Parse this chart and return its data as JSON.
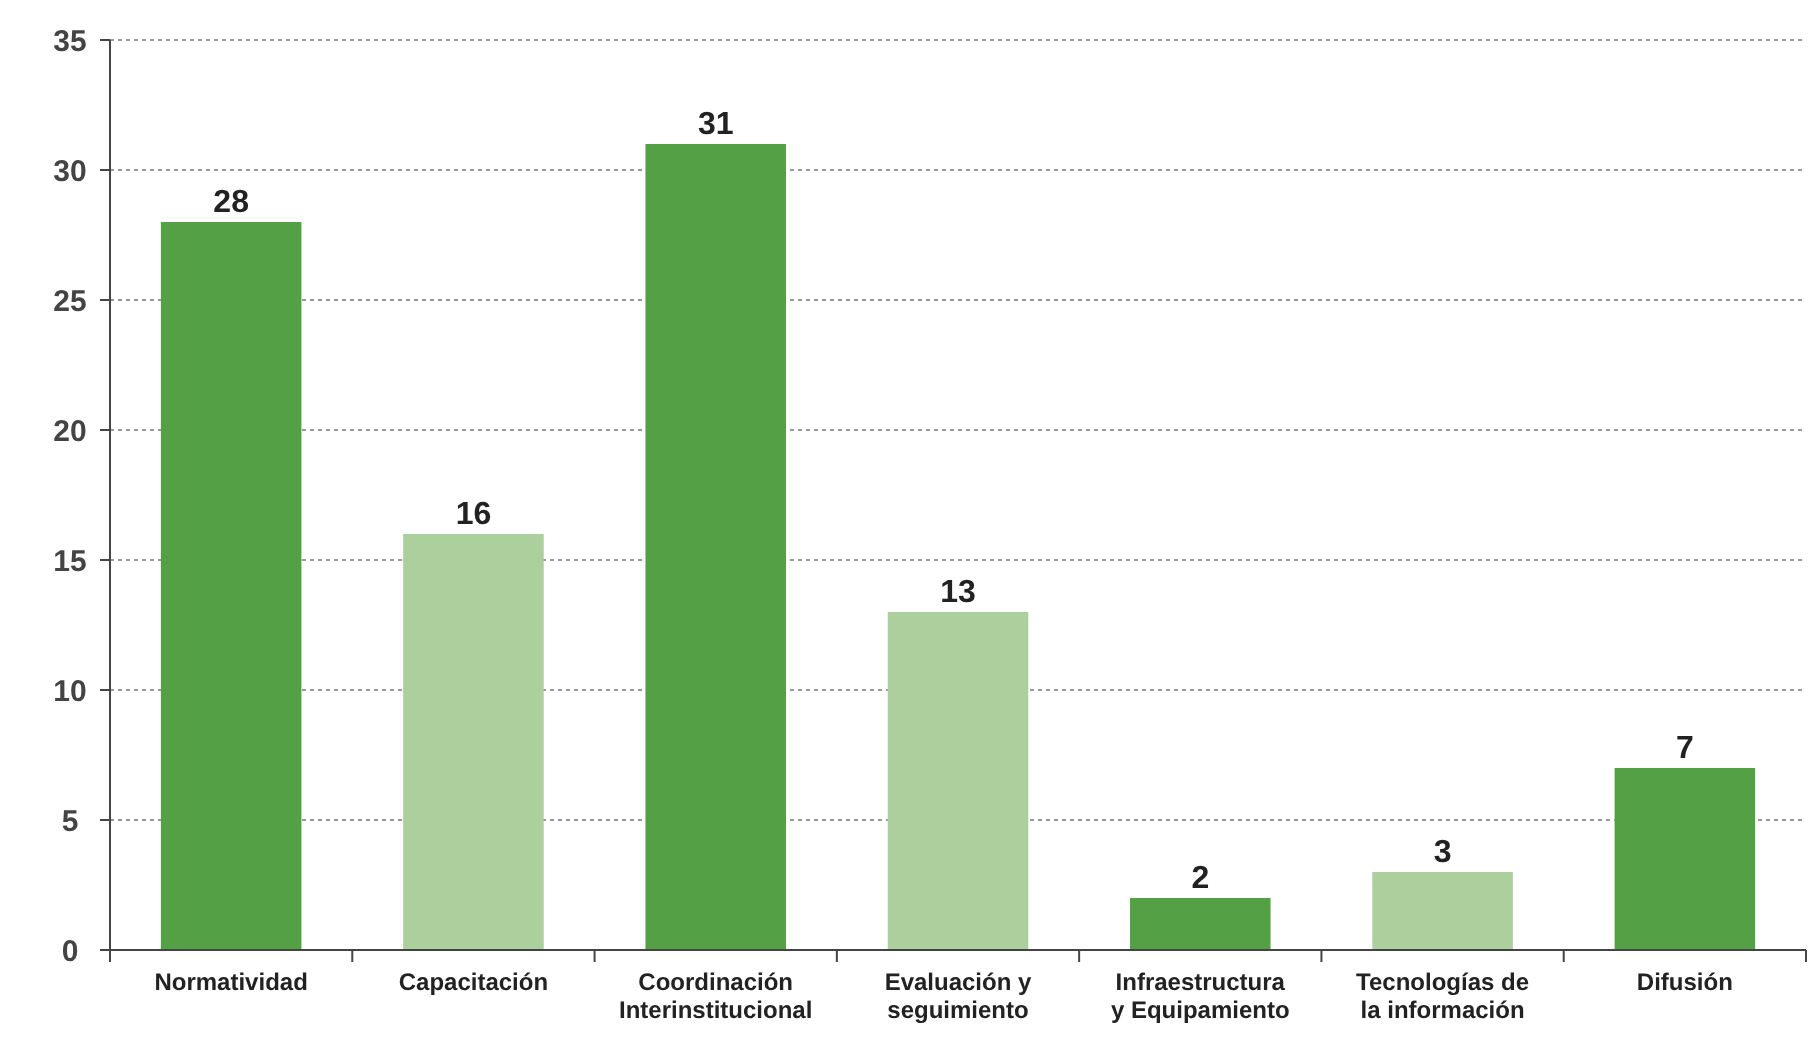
{
  "chart_data": {
    "type": "bar",
    "categories": [
      "Normatividad",
      "Capacitación",
      "Coordinación Interinstitucional",
      "Evaluación y seguimiento",
      "Infraestructura y Equipamiento",
      "Tecnologías de la información",
      "Difusión"
    ],
    "values": [
      28,
      16,
      31,
      13,
      2,
      3,
      7
    ],
    "colors": [
      "#54a044",
      "#abcf9d",
      "#54a044",
      "#abcf9d",
      "#54a044",
      "#abcf9d",
      "#54a044"
    ],
    "ylim": [
      0,
      35
    ],
    "yticks": [
      0,
      5,
      10,
      15,
      20,
      25,
      30,
      35
    ],
    "grid": "y",
    "data_labels": true
  }
}
